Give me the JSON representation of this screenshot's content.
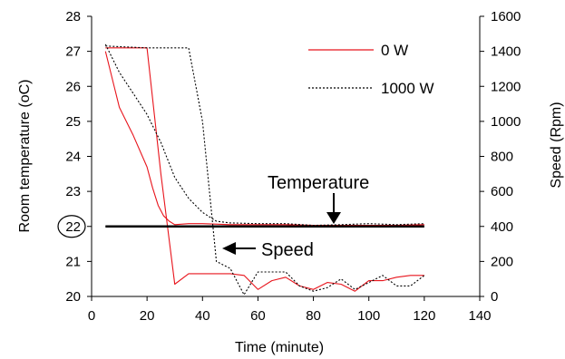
{
  "chart_data": {
    "type": "line",
    "xlabel": "Time (minute)",
    "ylabel": "Room temperature (oC)",
    "ylabel_right": "Speed (Rpm)",
    "xlim": [
      0,
      140
    ],
    "ylim": [
      20,
      28
    ],
    "ylim_right": [
      0,
      1600
    ],
    "x_ticks": [
      "0",
      "20",
      "40",
      "60",
      "80",
      "100",
      "120",
      "140"
    ],
    "y_ticks": [
      "20",
      "21",
      "22",
      "23",
      "24",
      "25",
      "26",
      "27",
      "28"
    ],
    "y_ticks_right": [
      "0",
      "200",
      "400",
      "600",
      "800",
      "1000",
      "1200",
      "1400",
      "1600"
    ],
    "grid": false,
    "legend_position": "top-right",
    "legend": [
      {
        "label": "0 W",
        "color": "#e8141c",
        "style": "solid"
      },
      {
        "label": "1000 W",
        "color": "#000000",
        "style": "dotted"
      }
    ],
    "series": [
      {
        "name": "0 W",
        "kind": "temperature",
        "axis": "left",
        "color": "#e8141c",
        "style": "solid",
        "x": [
          5,
          10,
          15,
          20,
          22,
          24,
          26,
          28,
          30,
          35,
          40,
          50,
          60,
          70,
          80,
          90,
          100,
          110,
          120
        ],
        "y": [
          27.0,
          25.4,
          24.6,
          23.7,
          23.1,
          22.6,
          22.3,
          22.15,
          22.05,
          22.08,
          22.08,
          22.05,
          22.05,
          22.05,
          22.03,
          22.03,
          22.03,
          22.03,
          22.05
        ]
      },
      {
        "name": "0 W",
        "kind": "speed",
        "axis": "right",
        "color": "#e8141c",
        "style": "solid",
        "x": [
          5,
          20,
          25,
          30,
          35,
          40,
          45,
          50,
          55,
          60,
          65,
          70,
          75,
          80,
          85,
          90,
          95,
          100,
          105,
          110,
          115,
          120
        ],
        "y": [
          1420,
          1420,
          700,
          70,
          130,
          130,
          130,
          130,
          120,
          40,
          90,
          110,
          60,
          40,
          80,
          70,
          30,
          90,
          90,
          110,
          120,
          120
        ]
      },
      {
        "name": "1000 W",
        "kind": "temperature",
        "axis": "left",
        "color": "#000000",
        "style": "dotted",
        "x": [
          5,
          10,
          15,
          20,
          25,
          30,
          35,
          40,
          45,
          50,
          60,
          70,
          80,
          90,
          100,
          110,
          120
        ],
        "y": [
          27.2,
          26.4,
          25.8,
          25.2,
          24.4,
          23.4,
          22.8,
          22.4,
          22.15,
          22.1,
          22.08,
          22.08,
          22.03,
          22.05,
          22.08,
          22.05,
          22.08
        ]
      },
      {
        "name": "1000 W",
        "kind": "speed",
        "axis": "right",
        "color": "#000000",
        "style": "dotted",
        "x": [
          5,
          20,
          25,
          30,
          35,
          40,
          45,
          50,
          55,
          60,
          65,
          70,
          75,
          80,
          85,
          90,
          95,
          100,
          105,
          110,
          115,
          120
        ],
        "y": [
          1430,
          1420,
          1420,
          1420,
          1420,
          1000,
          200,
          160,
          10,
          140,
          140,
          140,
          60,
          30,
          50,
          100,
          40,
          80,
          120,
          60,
          60,
          120
        ]
      }
    ],
    "reference_line": {
      "y": 22,
      "color": "#000000",
      "x_from": 5,
      "x_to": 120
    },
    "circled_tick": "22",
    "annotations": [
      {
        "text": "Temperature",
        "arrow_to": {
          "x": 87,
          "y": 22
        }
      },
      {
        "text": "Speed",
        "arrow_to": {
          "x": 38,
          "y": 21
        }
      }
    ]
  }
}
